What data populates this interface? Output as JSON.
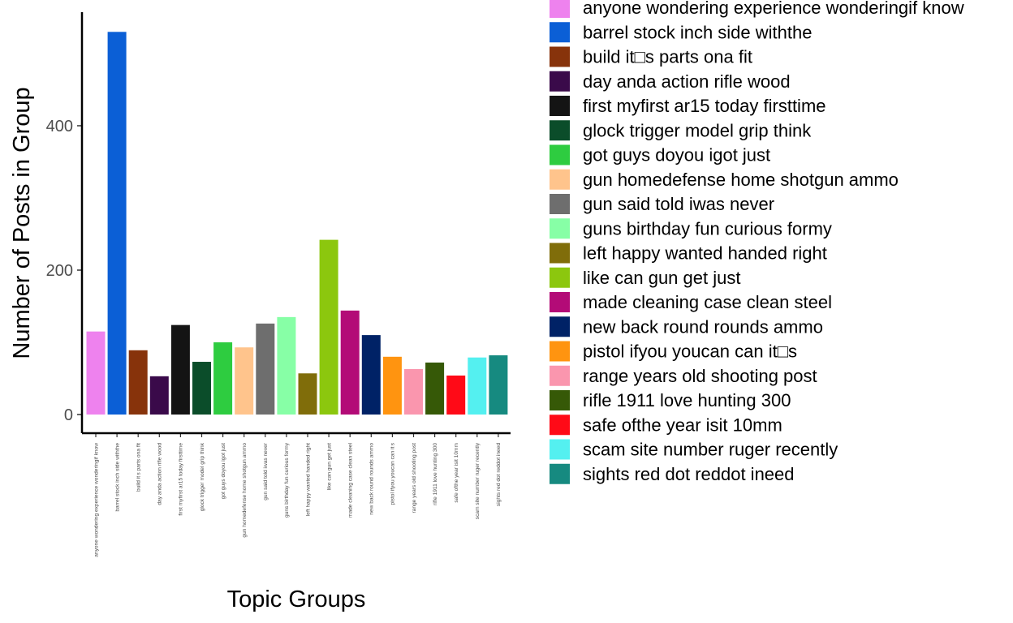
{
  "chart_data": {
    "type": "bar",
    "xlabel": "Topic Groups",
    "ylabel": "Number of Posts in Group",
    "ylim": [
      0,
      560
    ],
    "yticks": [
      0,
      200,
      400
    ],
    "grid": false,
    "legend_position": "right",
    "categories": [
      "anyone wondering experience wonderingif know",
      "barrel stock inch side withthe",
      "build it□s parts ona fit",
      "day anda action rifle wood",
      "first myfirst ar15 today firsttime",
      "glock trigger model grip think",
      "got guys doyou igot just",
      "gun homedefense home shotgun ammo",
      "gun said told iwas never",
      "guns birthday fun curious formy",
      "left happy wanted handed right",
      "like can gun get just",
      "made cleaning case clean steel",
      "new back round rounds ammo",
      "pistol ifyou youcan can it□s",
      "range years old shooting post",
      "rifle 1911 love hunting 300",
      "safe ofthe year isit 10mm",
      "scam site number ruger recently",
      "sights red dot reddot ineed"
    ],
    "axis_labels": [
      "anyone wondering experience wonderingif know",
      "barrel stock inch side withthe",
      "build it s parts ona fit",
      "day anda action rifle wood",
      "first myfirst ar15 today firsttime",
      "glock trigger model grip think",
      "got guys doyou igot just",
      "gun homedefense home shotgun ammo",
      "gun said told iwas never",
      "guns birthday fun curious formy",
      "left happy wanted handed right",
      "like can gun get just",
      "made cleaning case clean steel",
      "new back round rounds ammo",
      "pistol ifyou youcan can it s",
      "range years old shooting post",
      "rifle 1911 love hunting 300",
      "safe ofthe year isit 10mm",
      "scam site number ruger recently",
      "sights red dot reddot ineed"
    ],
    "values": [
      115,
      530,
      89,
      53,
      124,
      73,
      100,
      93,
      126,
      135,
      57,
      242,
      144,
      110,
      80,
      63,
      72,
      54,
      79,
      82
    ],
    "colors": [
      "#EE82EE",
      "#0B5FD6",
      "#87330B",
      "#3A0A4A",
      "#141414",
      "#0B4D2A",
      "#2ECC40",
      "#FFC48C",
      "#6E6E6E",
      "#87FFA6",
      "#806D0A",
      "#8CC70E",
      "#B30B77",
      "#002266",
      "#FF9410",
      "#FA96AE",
      "#365907",
      "#FF0A17",
      "#54F0F0",
      "#168A80"
    ]
  }
}
